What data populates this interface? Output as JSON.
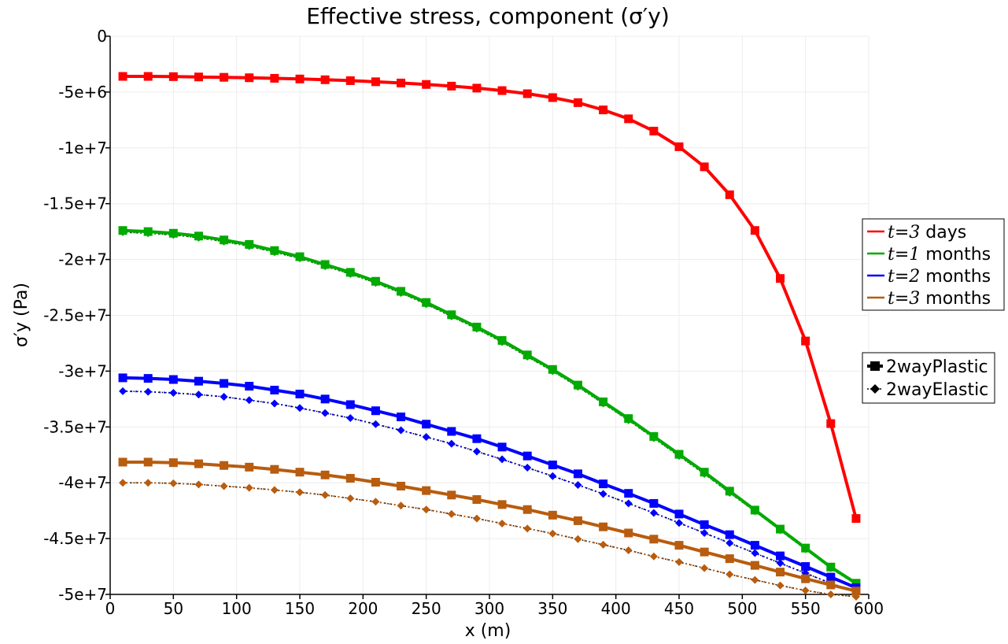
{
  "chart_data": {
    "type": "line",
    "title": "Effective stress, component (σ′y)",
    "xlabel": "x (m)",
    "ylabel": "σ′y (Pa)",
    "xlim": [
      0,
      600
    ],
    "ylim": [
      -50000000,
      0
    ],
    "x_ticks": [
      0,
      50,
      100,
      150,
      200,
      250,
      300,
      350,
      400,
      450,
      500,
      550,
      600
    ],
    "x_tick_labels": [
      "0",
      "50",
      "100",
      "150",
      "200",
      "250",
      "300",
      "350",
      "400",
      "450",
      "500",
      "550",
      "600"
    ],
    "y_ticks": [
      0,
      -5000000,
      -10000000,
      -15000000,
      -20000000,
      -25000000,
      -30000000,
      -35000000,
      -40000000,
      -45000000,
      -50000000
    ],
    "y_tick_labels": [
      "0",
      "-5e+6",
      "-1e+7",
      "-1.5e+7",
      "-2e+7",
      "-2.5e+7",
      "-3e+7",
      "-3.5e+7",
      "-4e+7",
      "-4.5e+7",
      "-5e+7"
    ],
    "grid": true,
    "x": [
      10,
      30,
      50,
      70,
      90,
      110,
      130,
      150,
      170,
      190,
      210,
      230,
      250,
      270,
      290,
      310,
      330,
      350,
      370,
      390,
      410,
      430,
      450,
      470,
      490,
      510,
      530,
      550,
      570,
      590
    ],
    "series": [
      {
        "name": "t=3 days, 2wayPlastic",
        "color": "#ff0000",
        "style": "solid-square",
        "values": [
          -3600000,
          -3600000,
          -3620000,
          -3650000,
          -3680000,
          -3720000,
          -3770000,
          -3830000,
          -3900000,
          -3980000,
          -4080000,
          -4190000,
          -4320000,
          -4470000,
          -4650000,
          -4870000,
          -5150000,
          -5500000,
          -5950000,
          -6600000,
          -7400000,
          -8500000,
          -9900000,
          -11700000,
          -14200000,
          -17400000,
          -21700000,
          -27300000,
          -34700000,
          -43200000
        ]
      },
      {
        "name": "t=1 months, 2wayPlastic",
        "color": "#00aa00",
        "style": "solid-square",
        "values": [
          -17400000,
          -17500000,
          -17650000,
          -17900000,
          -18250000,
          -18650000,
          -19200000,
          -19750000,
          -20450000,
          -21150000,
          -21950000,
          -22850000,
          -23850000,
          -24950000,
          -26050000,
          -27250000,
          -28550000,
          -29850000,
          -31250000,
          -32750000,
          -34250000,
          -35850000,
          -37450000,
          -39050000,
          -40750000,
          -42450000,
          -44150000,
          -45850000,
          -47550000,
          -49000000
        ]
      },
      {
        "name": "t=2 months, 2wayPlastic",
        "color": "#0000ff",
        "style": "solid-square",
        "values": [
          -30600000,
          -30650000,
          -30750000,
          -30900000,
          -31100000,
          -31350000,
          -31700000,
          -32050000,
          -32500000,
          -33000000,
          -33550000,
          -34100000,
          -34750000,
          -35400000,
          -36050000,
          -36800000,
          -37600000,
          -38400000,
          -39200000,
          -40100000,
          -40950000,
          -41850000,
          -42800000,
          -43750000,
          -44650000,
          -45600000,
          -46550000,
          -47500000,
          -48450000,
          -49400000
        ]
      },
      {
        "name": "t=3 months, 2wayPlastic",
        "color": "#b85c0f",
        "style": "solid-square",
        "values": [
          -38150000,
          -38150000,
          -38200000,
          -38300000,
          -38450000,
          -38600000,
          -38800000,
          -39050000,
          -39300000,
          -39600000,
          -39950000,
          -40300000,
          -40700000,
          -41100000,
          -41500000,
          -41950000,
          -42400000,
          -42900000,
          -43400000,
          -43950000,
          -44500000,
          -45050000,
          -45600000,
          -46200000,
          -46800000,
          -47400000,
          -48000000,
          -48600000,
          -49150000,
          -49700000
        ]
      },
      {
        "name": "t=3 days, 2wayElastic",
        "color": "#ff0000",
        "style": "dotted-diamond",
        "values": [
          -3600000,
          -3600000,
          -3620000,
          -3650000,
          -3680000,
          -3720000,
          -3770000,
          -3830000,
          -3900000,
          -3980000,
          -4080000,
          -4190000,
          -4320000,
          -4470000,
          -4650000,
          -4870000,
          -5150000,
          -5500000,
          -5950000,
          -6600000,
          -7400000,
          -8500000,
          -9900000,
          -11700000,
          -14200000,
          -17400000,
          -21700000,
          -27300000,
          -34700000,
          -43200000
        ]
      },
      {
        "name": "t=1 months, 2wayElastic",
        "color": "#00aa00",
        "style": "dotted-diamond",
        "values": [
          -17550000,
          -17650000,
          -17800000,
          -18050000,
          -18400000,
          -18800000,
          -19350000,
          -19900000,
          -20600000,
          -21300000,
          -22100000,
          -23000000,
          -24000000,
          -25100000,
          -26200000,
          -27400000,
          -28700000,
          -30000000,
          -31400000,
          -32900000,
          -34400000,
          -36000000,
          -37600000,
          -39200000,
          -40900000,
          -42550000,
          -44250000,
          -45950000,
          -47650000,
          -49100000
        ]
      },
      {
        "name": "t=2 months, 2wayElastic",
        "color": "#0000ff",
        "style": "dotted-diamond",
        "values": [
          -31800000,
          -31850000,
          -31950000,
          -32100000,
          -32300000,
          -32600000,
          -32900000,
          -33300000,
          -33750000,
          -34200000,
          -34750000,
          -35300000,
          -35900000,
          -36500000,
          -37200000,
          -37900000,
          -38650000,
          -39400000,
          -40200000,
          -41000000,
          -41850000,
          -42700000,
          -43600000,
          -44500000,
          -45400000,
          -46300000,
          -47200000,
          -48100000,
          -49000000,
          -49800000
        ]
      },
      {
        "name": "t=3 months, 2wayElastic",
        "color": "#b85c0f",
        "style": "dotted-diamond",
        "values": [
          -40000000,
          -40000000,
          -40050000,
          -40150000,
          -40300000,
          -40450000,
          -40650000,
          -40850000,
          -41100000,
          -41400000,
          -41700000,
          -42050000,
          -42400000,
          -42800000,
          -43200000,
          -43650000,
          -44100000,
          -44550000,
          -45050000,
          -45550000,
          -46050000,
          -46600000,
          -47100000,
          -47650000,
          -48200000,
          -48700000,
          -49200000,
          -49650000,
          -50000000,
          -50200000
        ]
      }
    ],
    "legend_times": {
      "placement": "right",
      "entries": [
        {
          "math": "t=3",
          "text": "days",
          "color": "#ff0000"
        },
        {
          "math": "t=1",
          "text": "months",
          "color": "#00aa00"
        },
        {
          "math": "t=2",
          "text": "months",
          "color": "#0000ff"
        },
        {
          "math": "t=3",
          "text": "months",
          "color": "#b85c0f"
        }
      ]
    },
    "legend_cases": {
      "placement": "right",
      "entries": [
        {
          "text": "2wayPlastic",
          "marker": "square"
        },
        {
          "text": "2wayElastic",
          "marker": "diamond"
        }
      ]
    }
  },
  "colors": {
    "grid": "#ececec",
    "axis": "#000000",
    "legend_border": "#000000"
  }
}
